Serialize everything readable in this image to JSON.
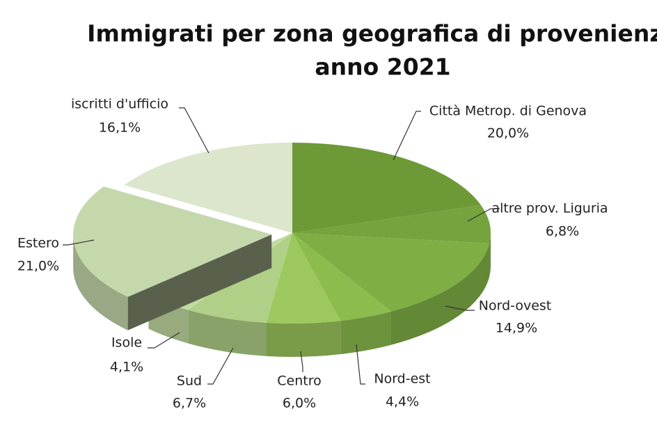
{
  "chart_data": {
    "type": "pie3d",
    "title": "Immigrati per zona geografica di provenienza",
    "subtitle": "anno 2021",
    "categories": [
      "Città Metrop. di Genova",
      "altre prov. Liguria",
      "Nord-ovest",
      "Nord-est",
      "Centro",
      "Sud",
      "Isole",
      "Estero",
      "iscritti d'ufficio"
    ],
    "values": [
      20.0,
      6.8,
      14.9,
      4.4,
      6.0,
      6.7,
      4.1,
      21.0,
      16.1
    ],
    "value_labels": [
      "20,0%",
      "6,8%",
      "14,9%",
      "4,4%",
      "6,0%",
      "6,7%",
      "4,1%",
      "21,0%",
      "16,1%"
    ],
    "colors": [
      "#6d9a37",
      "#76a33e",
      "#7fae45",
      "#8cbc4e",
      "#9dc85e",
      "#b0d087",
      "#c2dba2",
      "#c5d8ab",
      "#dbe6cc"
    ],
    "exploded": [
      false,
      false,
      false,
      false,
      false,
      false,
      false,
      true,
      false
    ]
  }
}
